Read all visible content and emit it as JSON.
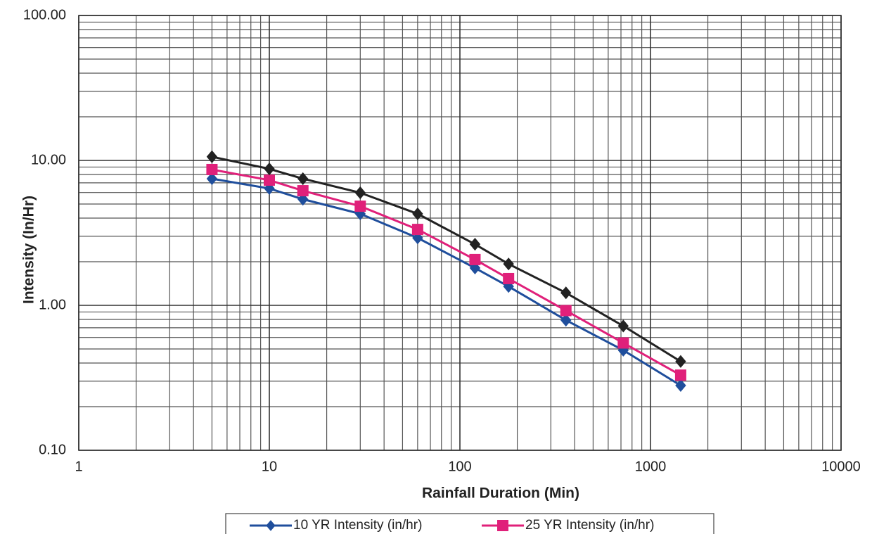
{
  "chart_data": {
    "type": "line",
    "x_label": "Rainfall Duration (Min)",
    "y_label": "Intensity (In/Hr)",
    "x_scale": "log",
    "y_scale": "log",
    "xlim": [
      1,
      10000
    ],
    "ylim": [
      0.1,
      100
    ],
    "xticks": [
      1,
      10,
      100,
      1000,
      10000
    ],
    "yticks": [
      {
        "value": 0.1,
        "label": "0.10"
      },
      {
        "value": 1,
        "label": "1.00"
      },
      {
        "value": 10,
        "label": "10.00"
      },
      {
        "value": 100,
        "label": "100.00"
      }
    ],
    "grid": true,
    "minor_grid": true,
    "legend": "bottom",
    "x": [
      5,
      10,
      15,
      30,
      60,
      120,
      180,
      360,
      720,
      1440
    ],
    "series": [
      {
        "name": "10 YR Intensity (in/hr)",
        "color": "#1f4e9c",
        "marker": "diamond",
        "values": [
          7.48,
          6.4,
          5.4,
          4.28,
          2.92,
          1.81,
          1.35,
          0.79,
          0.49,
          0.28
        ]
      },
      {
        "name": "25 YR Intensity (in/hr)",
        "color": "#e0207a",
        "marker": "square",
        "values": [
          8.65,
          7.31,
          6.18,
          4.83,
          3.34,
          2.07,
          1.53,
          0.92,
          0.55,
          0.33
        ]
      },
      {
        "color": "#222222",
        "marker": "diamond",
        "values": [
          10.6,
          8.74,
          7.48,
          5.98,
          4.28,
          2.64,
          1.93,
          1.22,
          0.72,
          0.41
        ]
      }
    ]
  }
}
